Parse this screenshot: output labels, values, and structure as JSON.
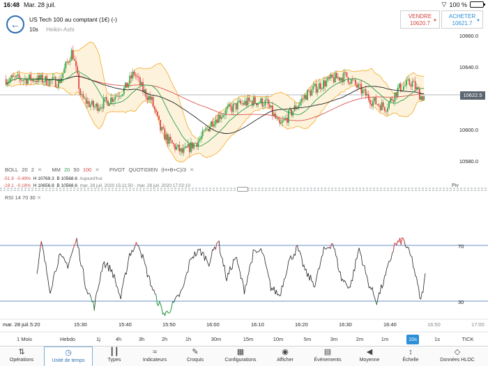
{
  "status_bar": {
    "time": "16:48",
    "date": "Mar. 28 juil.",
    "battery": "100 %"
  },
  "header": {
    "instrument": "US Tech 100 au comptant (1€) (-)",
    "interval": "10s",
    "chart_style": "Heikin-Ashi",
    "sell_label": "VENDRE",
    "sell_price": "10620.7",
    "buy_label": "ACHETER",
    "buy_price": "10621.7"
  },
  "price_axis": {
    "labels": [
      "10660.0",
      "10640.0",
      "10620.0",
      "10600.0",
      "10580.0"
    ],
    "current": "10622.5"
  },
  "indicators": {
    "boll": {
      "name": "BOLL",
      "p1": "20",
      "p2": "2"
    },
    "mm": {
      "name": "MM",
      "v1": "20",
      "v2": "50",
      "v3": "100"
    },
    "pivot": {
      "name": "PIVOT",
      "period": "QUOTIDIEN",
      "formula": "(H+B+C)/3"
    },
    "row1": {
      "chg": "-51.9",
      "pct": "-0.49%",
      "h": "H 10769.3",
      "b": "B 10568.6",
      "when": "Aujourd'hui"
    },
    "row2": {
      "chg": "-19.1",
      "pct": "-0.18%",
      "h": "H 10656.8",
      "b": "B 10568.6",
      "range": "mar. 28 juil. 2020 15:11:50 - mar. 28 juil. 2020 17:02:10"
    },
    "piv_label": "Piv",
    "rsi": {
      "name": "RSI",
      "p1": "14",
      "p2": "70",
      "p3": "30",
      "level_high": "70",
      "level_low": "30"
    }
  },
  "time_axis": {
    "date": "mar. 28 juil.",
    "ticks": [
      "5:20",
      "15:30",
      "15:40",
      "15:50",
      "16:00",
      "16:10",
      "16:20",
      "16:30",
      "16:40",
      "16:50",
      "17:00"
    ]
  },
  "timeframes": [
    "1 Mois",
    "Hebdo",
    "1j",
    "4h",
    "3h",
    "2h",
    "1h",
    "30m",
    "15m",
    "10m",
    "5m",
    "3m",
    "2m",
    "1m",
    "10s",
    "1s",
    "TICK"
  ],
  "active_timeframe": "10s",
  "toolbar": [
    "Opérations",
    "Unité de temps",
    "Types",
    "Indicateurs",
    "Croquis",
    "Configurations",
    "Afficher",
    "Événements",
    "Moyenne",
    "Échelle",
    "Données HLOC"
  ],
  "colors": {
    "up": "#2fa84f",
    "down": "#e0484a",
    "boll": "#f5a623",
    "accent": "#2b8fd6",
    "rsi_level": "#6a8fc8"
  },
  "chart_data": {
    "type": "candlestick",
    "x_ticks": [
      "15:30",
      "15:40",
      "15:50",
      "16:00",
      "16:10",
      "16:20",
      "16:30",
      "16:40",
      "16:50",
      "17:00"
    ],
    "price_range": [
      10570,
      10665
    ],
    "price_keypoints": [
      [
        "15:20",
        10632
      ],
      [
        "15:25",
        10630
      ],
      [
        "15:28",
        10650
      ],
      [
        "15:30",
        10620
      ],
      [
        "15:33",
        10614
      ],
      [
        "15:36",
        10618
      ],
      [
        "15:40",
        10626
      ],
      [
        "15:42",
        10636
      ],
      [
        "15:44",
        10625
      ],
      [
        "15:46",
        10618
      ],
      [
        "15:48",
        10600
      ],
      [
        "15:50",
        10592
      ],
      [
        "15:53",
        10585
      ],
      [
        "15:57",
        10594
      ],
      [
        "16:00",
        10606
      ],
      [
        "16:03",
        10612
      ],
      [
        "16:06",
        10616
      ],
      [
        "16:09",
        10618
      ],
      [
        "16:12",
        10617
      ],
      [
        "16:15",
        10602
      ],
      [
        "16:18",
        10612
      ],
      [
        "16:21",
        10622
      ],
      [
        "16:24",
        10628
      ],
      [
        "16:27",
        10632
      ],
      [
        "16:30",
        10634
      ],
      [
        "16:33",
        10626
      ],
      [
        "16:36",
        10618
      ],
      [
        "16:39",
        10614
      ],
      [
        "16:42",
        10626
      ],
      [
        "16:45",
        10630
      ],
      [
        "16:47",
        10621
      ]
    ],
    "rsi_range": [
      10,
      90
    ],
    "rsi_keypoints": [
      [
        "15:20",
        48
      ],
      [
        "15:21",
        72
      ],
      [
        "15:23",
        38
      ],
      [
        "15:25",
        62
      ],
      [
        "15:27",
        56
      ],
      [
        "15:29",
        74
      ],
      [
        "15:31",
        42
      ],
      [
        "15:33",
        26
      ],
      [
        "15:35",
        58
      ],
      [
        "15:37",
        52
      ],
      [
        "15:39",
        32
      ],
      [
        "15:41",
        64
      ],
      [
        "15:43",
        72
      ],
      [
        "15:45",
        50
      ],
      [
        "15:47",
        32
      ],
      [
        "15:49",
        20
      ],
      [
        "15:51",
        28
      ],
      [
        "15:53",
        38
      ],
      [
        "15:55",
        62
      ],
      [
        "15:57",
        66
      ],
      [
        "15:59",
        58
      ],
      [
        "16:01",
        74
      ],
      [
        "16:03",
        46
      ],
      [
        "16:05",
        62
      ],
      [
        "16:07",
        38
      ],
      [
        "16:09",
        64
      ],
      [
        "16:11",
        66
      ],
      [
        "16:13",
        40
      ],
      [
        "16:15",
        34
      ],
      [
        "16:17",
        58
      ],
      [
        "16:19",
        68
      ],
      [
        "16:21",
        50
      ],
      [
        "16:23",
        42
      ],
      [
        "16:25",
        66
      ],
      [
        "16:27",
        72
      ],
      [
        "16:29",
        46
      ],
      [
        "16:31",
        40
      ],
      [
        "16:33",
        68
      ],
      [
        "16:35",
        44
      ],
      [
        "16:37",
        30
      ],
      [
        "16:39",
        48
      ],
      [
        "16:41",
        70
      ],
      [
        "16:43",
        74
      ],
      [
        "16:45",
        60
      ],
      [
        "16:47",
        30
      ],
      [
        "16:48",
        48
      ]
    ]
  }
}
